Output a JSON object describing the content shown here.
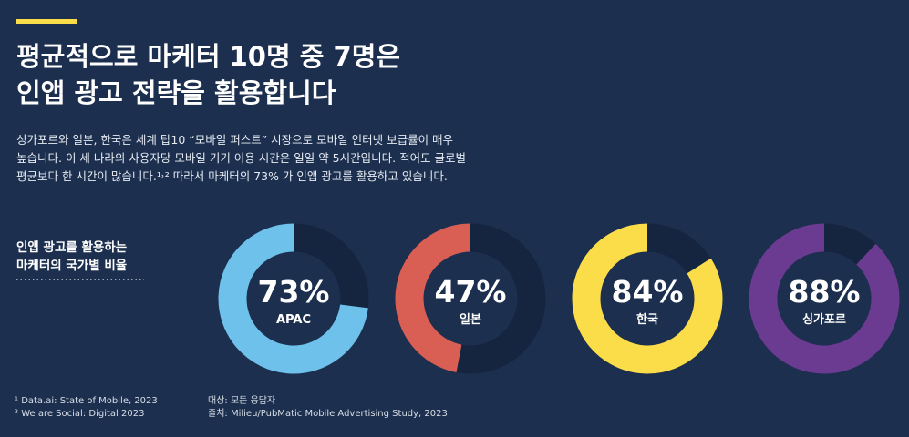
{
  "header": {
    "title_lines": [
      "평균적으로 마케터 10명 중 7명은",
      "인앱 광고 전략을 활용합니다"
    ]
  },
  "body": {
    "lines": [
      "싱가포르와 일본, 한국은 세계 탑10 “모바일 퍼스트” 시장으로 모바일 인터넷 보급률이 매우",
      "높습니다. 이 세 나라의 사용자당 모바일 기기 이용 시간은 일일 약 5시간입니다. 적어도 글로벌",
      "평균보다 한 시간이 많습니다.¹˒² 따라서 마케터의 73% 가 인앱 광고를 활용하고 있습니다."
    ]
  },
  "section": {
    "lines": [
      "인앱 광고를 활용하는",
      "마케터의 국가별 비율"
    ]
  },
  "footnotes": [
    "¹ Data.ai: State of Mobile, 2023",
    "² We are Social: Digital 2023"
  ],
  "source": [
    "대상: 모든 응답자",
    "출처: Milieu/PubMatic Mobile Advertising Study, 2023"
  ],
  "chart_data": [
    {
      "type": "donut",
      "title": "APAC",
      "values": [
        73
      ],
      "value_labels": [
        "73%"
      ],
      "color": "#6ec1ea"
    },
    {
      "type": "donut",
      "title": "일본",
      "values": [
        47
      ],
      "value_labels": [
        "47%"
      ],
      "color": "#d95f55"
    },
    {
      "type": "donut",
      "title": "한국",
      "values": [
        84
      ],
      "value_labels": [
        "84%"
      ],
      "color": "#fbdd4a"
    },
    {
      "type": "donut",
      "title": "싱가포르",
      "values": [
        88
      ],
      "value_labels": [
        "88%"
      ],
      "color": "#6b3b91"
    }
  ]
}
